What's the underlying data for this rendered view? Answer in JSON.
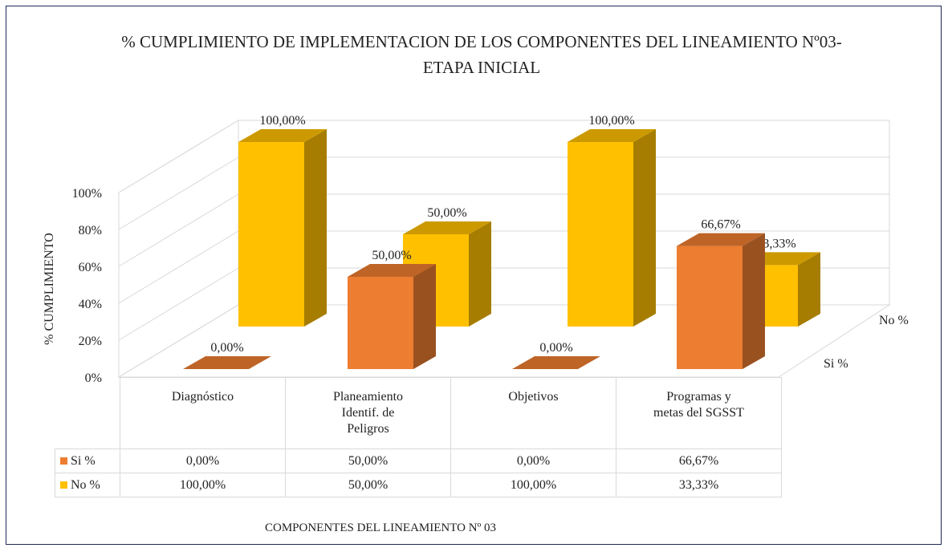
{
  "chart_data": {
    "type": "bar3d",
    "title": "% CUMPLIMIENTO DE IMPLEMENTACION DE LOS COMPONENTES DEL LINEAMIENTO Nº03- ETAPA INICIAL",
    "xlabel": "COMPONENTES DEL LINEAMIENTO Nº 03",
    "ylabel": "% CUMPLIMIENTO",
    "categories": [
      "Diagnóstico",
      "Planeamiento Identif. de Peligros",
      "Objetivos",
      "Programas y metas del SGSST"
    ],
    "series": [
      {
        "name": "Si %",
        "color": "#ED7D31",
        "values": [
          0,
          50,
          0,
          66.67
        ],
        "value_labels": [
          "0,00%",
          "50,00%",
          "0,00%",
          "66,67%"
        ]
      },
      {
        "name": "No %",
        "color": "#FFC000",
        "values": [
          100,
          50,
          100,
          33.33
        ],
        "value_labels": [
          "100,00%",
          "50,00%",
          "100,00%",
          "33,33%"
        ]
      }
    ],
    "ylim": [
      0,
      100
    ],
    "yticks": [
      {
        "value": 0,
        "label": "0%"
      },
      {
        "value": 20,
        "label": "20%"
      },
      {
        "value": 40,
        "label": "40%"
      },
      {
        "value": 60,
        "label": "60%"
      },
      {
        "value": 80,
        "label": "80%"
      },
      {
        "value": 100,
        "label": "100%"
      }
    ],
    "grid": true,
    "data_table": true
  }
}
